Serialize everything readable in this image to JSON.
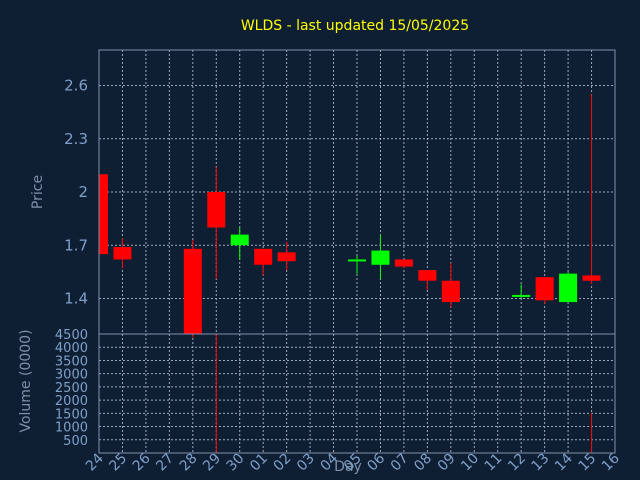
{
  "chart_data": {
    "type": "candlestick",
    "title": "WLDS - last updated 15/05/2025",
    "xlabel": "Day",
    "ylabel": "Price",
    "volume_label": "Volume (0000)",
    "ylim": [
      1.2,
      2.8
    ],
    "yticks": [
      "1.4",
      "1.7",
      "2",
      "2.3",
      "2.6"
    ],
    "volume_ylim": [
      0,
      4500
    ],
    "volume_ticks": [
      "500",
      "1000",
      "1500",
      "2000",
      "2500",
      "3000",
      "3500",
      "4000",
      "4500"
    ],
    "grid": true,
    "colors": {
      "up": "#00ff00",
      "down": "#ff0000",
      "title": "#ffff00",
      "background": "#0f1f33"
    },
    "x": [
      "24",
      "25",
      "26",
      "27",
      "28",
      "29",
      "30",
      "01",
      "02",
      "03",
      "04",
      "05",
      "06",
      "07",
      "08",
      "09",
      "10",
      "11",
      "12",
      "13",
      "14",
      "15",
      "16"
    ],
    "candles": [
      {
        "day": "24",
        "open": 2.1,
        "high": 2.1,
        "low": 1.65,
        "close": 1.65,
        "volume": 0
      },
      {
        "day": "25",
        "open": 1.69,
        "high": 1.74,
        "low": 1.57,
        "close": 1.62,
        "volume": 0
      },
      {
        "day": "28",
        "open": 1.68,
        "high": 1.73,
        "low": 1.18,
        "close": 1.2,
        "volume": 0
      },
      {
        "day": "29",
        "open": 2.0,
        "high": 2.14,
        "low": 1.51,
        "close": 1.8,
        "volume": 4500
      },
      {
        "day": "30",
        "open": 1.7,
        "high": 1.8,
        "low": 1.62,
        "close": 1.76,
        "volume": 0
      },
      {
        "day": "01",
        "open": 1.68,
        "high": 1.68,
        "low": 1.53,
        "close": 1.59,
        "volume": 0
      },
      {
        "day": "02",
        "open": 1.66,
        "high": 1.72,
        "low": 1.56,
        "close": 1.61,
        "volume": 0
      },
      {
        "day": "05",
        "open": 1.61,
        "high": 1.64,
        "low": 1.54,
        "close": 1.62,
        "volume": 0
      },
      {
        "day": "06",
        "open": 1.59,
        "high": 1.76,
        "low": 1.51,
        "close": 1.67,
        "volume": 0
      },
      {
        "day": "07",
        "open": 1.62,
        "high": 1.62,
        "low": 1.57,
        "close": 1.58,
        "volume": 0
      },
      {
        "day": "08",
        "open": 1.56,
        "high": 1.56,
        "low": 1.45,
        "close": 1.5,
        "volume": 0
      },
      {
        "day": "09",
        "open": 1.5,
        "high": 1.6,
        "low": 1.35,
        "close": 1.38,
        "volume": 0
      },
      {
        "day": "12",
        "open": 1.41,
        "high": 1.48,
        "low": 1.4,
        "close": 1.42,
        "volume": 0
      },
      {
        "day": "13",
        "open": 1.52,
        "high": 1.52,
        "low": 1.37,
        "close": 1.39,
        "volume": 0
      },
      {
        "day": "14",
        "open": 1.38,
        "high": 1.55,
        "low": 1.38,
        "close": 1.54,
        "volume": 0
      },
      {
        "day": "15",
        "open": 1.53,
        "high": 2.55,
        "low": 1.48,
        "close": 1.5,
        "volume": 1500
      }
    ]
  }
}
